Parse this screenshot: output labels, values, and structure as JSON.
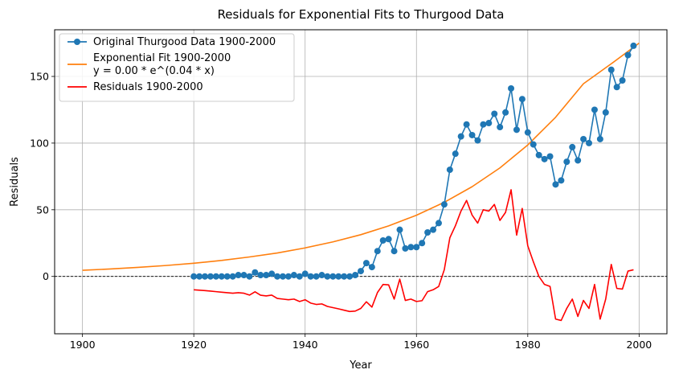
{
  "chart_data": {
    "type": "line",
    "title": "Residuals for Exponential Fits to Thurgood Data",
    "xlabel": "Year",
    "ylabel": "Residuals",
    "xlim": [
      1895,
      2005
    ],
    "ylim": [
      -43,
      185
    ],
    "xticks": [
      1900,
      1920,
      1940,
      1960,
      1980,
      2000
    ],
    "yticks": [
      0,
      50,
      100,
      150
    ],
    "grid": true,
    "legend_position": "upper-left",
    "colors": {
      "original": "#1f77b4",
      "fit": "#ff7f0e",
      "residuals": "#ff0000",
      "zero_line": "#000000"
    },
    "legend": [
      {
        "key": "original",
        "lines": [
          "Original Thurgood Data 1900-2000"
        ]
      },
      {
        "key": "fit",
        "lines": [
          "Exponential Fit 1900-2000",
          "y = 0.00 * e^(0.04 * x)"
        ]
      },
      {
        "key": "residuals",
        "lines": [
          "Residuals 1900-2000"
        ]
      }
    ],
    "series": [
      {
        "key": "original",
        "marker": "circle",
        "x": [
          1920,
          1921,
          1922,
          1923,
          1924,
          1925,
          1926,
          1927,
          1928,
          1929,
          1930,
          1931,
          1932,
          1933,
          1934,
          1935,
          1936,
          1937,
          1938,
          1939,
          1940,
          1941,
          1942,
          1943,
          1944,
          1945,
          1946,
          1947,
          1948,
          1949,
          1950,
          1951,
          1952,
          1953,
          1954,
          1955,
          1956,
          1957,
          1958,
          1959,
          1960,
          1961,
          1962,
          1963,
          1964,
          1965,
          1966,
          1967,
          1968,
          1969,
          1970,
          1971,
          1972,
          1973,
          1974,
          1975,
          1976,
          1977,
          1978,
          1979,
          1980,
          1981,
          1982,
          1983,
          1984,
          1985,
          1986,
          1987,
          1988,
          1989,
          1990,
          1991,
          1992,
          1993,
          1994,
          1995,
          1996,
          1997,
          1998,
          1999
        ],
        "y": [
          0,
          0,
          0,
          0,
          0,
          0,
          0,
          0,
          1,
          1,
          0,
          3,
          1,
          1,
          2,
          0,
          0,
          0,
          1,
          0,
          2,
          0,
          0,
          1,
          0,
          0,
          0,
          0,
          0,
          1,
          4,
          10,
          7,
          19,
          27,
          28,
          19,
          35,
          21,
          22,
          22,
          25,
          33,
          35,
          40,
          54,
          80,
          92,
          105,
          114,
          106,
          102,
          114,
          115,
          122,
          112,
          123,
          141,
          110,
          133,
          108,
          99,
          91,
          88,
          90,
          69,
          72,
          86,
          97,
          87,
          103,
          100,
          125,
          103,
          123,
          155,
          142,
          147,
          166,
          173
        ]
      },
      {
        "key": "fit",
        "x": [
          1900,
          1905,
          1910,
          1915,
          1920,
          1925,
          1930,
          1935,
          1940,
          1945,
          1950,
          1955,
          1960,
          1965,
          1970,
          1975,
          1980,
          1985,
          1990,
          1995,
          2000
        ],
        "y": [
          4.6,
          5.6,
          6.8,
          8.2,
          9.9,
          12.0,
          14.6,
          17.6,
          21.4,
          25.9,
          31.3,
          37.9,
          45.9,
          55.6,
          67.3,
          81.4,
          98.6,
          119.4,
          144.5,
          159.5,
          175
        ]
      },
      {
        "key": "residuals",
        "x": [
          1920,
          1921,
          1922,
          1923,
          1924,
          1925,
          1926,
          1927,
          1928,
          1929,
          1930,
          1931,
          1932,
          1933,
          1934,
          1935,
          1936,
          1937,
          1938,
          1939,
          1940,
          1941,
          1942,
          1943,
          1944,
          1945,
          1946,
          1947,
          1948,
          1949,
          1950,
          1951,
          1952,
          1953,
          1954,
          1955,
          1956,
          1957,
          1958,
          1959,
          1960,
          1961,
          1962,
          1963,
          1964,
          1965,
          1966,
          1967,
          1968,
          1969,
          1970,
          1971,
          1972,
          1973,
          1974,
          1975,
          1976,
          1977,
          1978,
          1979,
          1980,
          1981,
          1982,
          1983,
          1984,
          1985,
          1986,
          1987,
          1988,
          1989,
          1990,
          1991,
          1992,
          1993,
          1994,
          1995,
          1996,
          1997,
          1998,
          1999
        ],
        "y": [
          -10,
          -10.3,
          -10.6,
          -11,
          -11.4,
          -11.8,
          -12.2,
          -12.6,
          -12.2,
          -12.6,
          -14,
          -11.5,
          -14.1,
          -14.6,
          -14,
          -16.5,
          -17,
          -17.5,
          -17,
          -18.8,
          -17.5,
          -20,
          -21,
          -20.6,
          -22.5,
          -23.4,
          -24.3,
          -25.3,
          -26.3,
          -26,
          -24,
          -19,
          -23,
          -12,
          -6,
          -6.3,
          -17,
          -2,
          -18,
          -17,
          -18.8,
          -18.2,
          -11.4,
          -10,
          -7.5,
          5,
          29,
          38,
          49,
          57,
          46,
          40,
          50,
          49,
          54,
          42,
          48,
          65,
          31,
          51,
          23,
          11,
          0,
          -6,
          -7.5,
          -32,
          -33,
          -24,
          -17,
          -30,
          -18,
          -24,
          -6,
          -32,
          -17,
          9,
          -9,
          -9.5,
          4,
          5
        ]
      }
    ]
  }
}
